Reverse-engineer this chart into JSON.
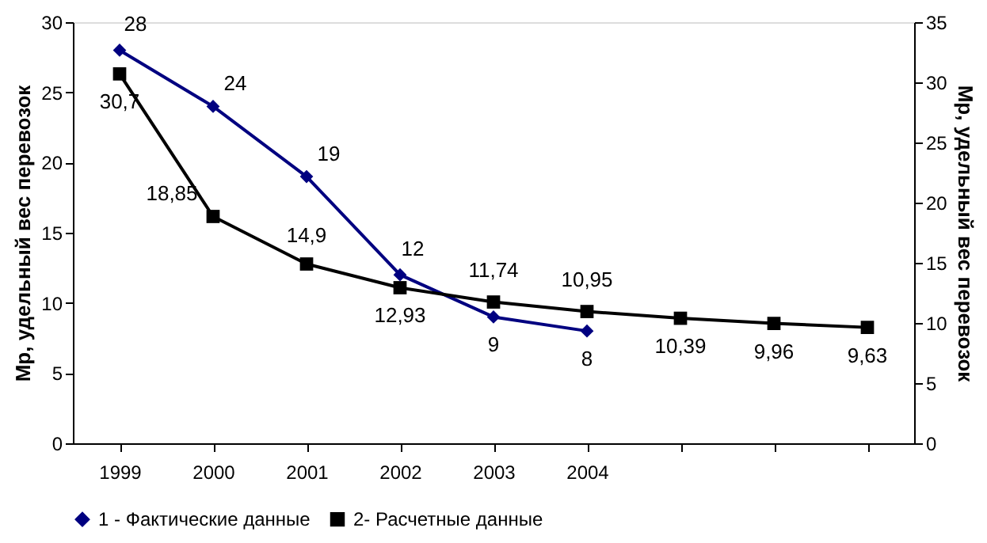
{
  "chart_data": {
    "type": "line",
    "categories": [
      "1999",
      "2000",
      "2001",
      "2002",
      "2003",
      "2004",
      null,
      null,
      null
    ],
    "ylabel": "Мр, удельный вес перевозок",
    "y2label": "Мр, удельный вес перевозок",
    "ylim": [
      0,
      30
    ],
    "yticks": [
      0,
      5,
      10,
      15,
      20,
      25,
      30
    ],
    "y2lim": [
      0,
      35
    ],
    "y2ticks": [
      0,
      5,
      10,
      15,
      20,
      25,
      30,
      35
    ],
    "grid": false,
    "legend": "bottom",
    "line_style": "solid",
    "series": [
      {
        "name": "1 - Фактические данные",
        "color": "#000080",
        "marker": "diamond",
        "values": [
          28,
          24,
          19,
          12,
          9,
          8,
          null,
          null,
          null
        ],
        "value_labels": [
          "28",
          "24",
          "19",
          "12",
          "9",
          "8",
          null,
          null,
          null
        ]
      },
      {
        "name": "2- Расчетные данные",
        "color": "#000000",
        "marker": "square",
        "axis": "y2",
        "values": [
          30.7,
          18.85,
          14.9,
          12.93,
          11.74,
          10.95,
          10.39,
          9.96,
          9.63
        ],
        "value_labels": [
          "30,7",
          "18,85",
          "14,9",
          "12,93",
          "11,74",
          "10,95",
          "10,39",
          "9,96",
          "9,63"
        ]
      }
    ]
  }
}
